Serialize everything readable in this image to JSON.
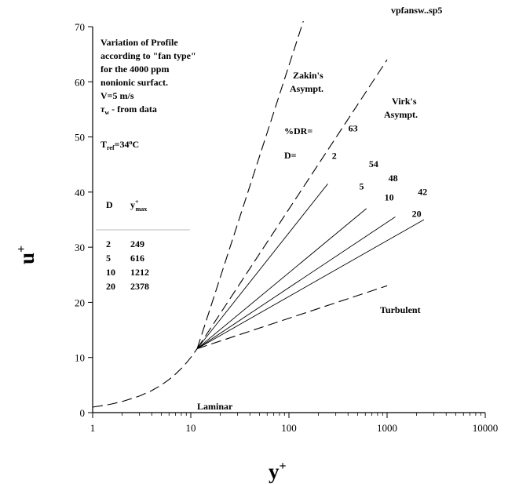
{
  "chart_data": {
    "type": "line",
    "title": "vpfansw..sp5",
    "xlabel": "y",
    "xlabel_sup": "+",
    "ylabel": "u",
    "ylabel_sup": "+",
    "x_scale": "log",
    "xlim": [
      1,
      10000
    ],
    "ylim": [
      0,
      70
    ],
    "x_ticks": [
      1,
      10,
      100,
      1000,
      10000
    ],
    "x_tick_labels": [
      "1",
      "10",
      "100",
      "1000",
      "10000"
    ],
    "y_ticks": [
      0,
      10,
      20,
      30,
      40,
      50,
      60,
      70
    ],
    "y_tick_labels": [
      "0",
      "10",
      "20",
      "30",
      "40",
      "50",
      "60",
      "70"
    ],
    "grid": false,
    "description_lines": [
      "Variation of Profile",
      "according to \"fan type\"",
      "for the 4000 ppm",
      "nonionic surfact.",
      "V=5 m/s"
    ],
    "tau_label": {
      "symbol": "τ",
      "sub": "w",
      "rest": " - from data"
    },
    "tref_label": {
      "main": "T",
      "sub": "ref",
      "value": "=34",
      "sup": "o",
      "unit": "C"
    },
    "table": {
      "headers": {
        "d": "D",
        "y_main": "y",
        "y_sup": "+",
        "y_sub": "max"
      },
      "rows": [
        {
          "d": "2",
          "ymax": "249"
        },
        {
          "d": "5",
          "ymax": "616"
        },
        {
          "d": "10",
          "ymax": "1212"
        },
        {
          "d": "20",
          "ymax": "2378"
        }
      ]
    },
    "series": [
      {
        "name": "Zakin's Asympt.",
        "label_lines": [
          "Zakin's",
          "Asympt."
        ],
        "style": "dashed",
        "points": [
          [
            11.6,
            11.6
          ],
          [
            140,
            71
          ]
        ]
      },
      {
        "name": "Virk's Asympt.",
        "label_lines": [
          "Virk's",
          "Asympt."
        ],
        "style": "dashed",
        "points": [
          [
            11.6,
            11.6
          ],
          [
            1000,
            64
          ]
        ]
      },
      {
        "name": "Turbulent",
        "label_lines": [
          "Turbulent"
        ],
        "style": "dashed",
        "points": [
          [
            11.6,
            11.6
          ],
          [
            1000,
            23
          ]
        ]
      },
      {
        "name": "Laminar",
        "label_lines": [
          "Laminar"
        ],
        "style": "dashed",
        "points": [
          [
            1,
            1
          ],
          [
            1.5,
            1.5
          ],
          [
            2,
            2
          ],
          [
            3,
            3
          ],
          [
            4,
            4
          ],
          [
            5,
            5
          ],
          [
            6,
            6
          ],
          [
            7,
            7
          ],
          [
            8,
            8
          ],
          [
            9,
            9
          ],
          [
            10,
            10
          ],
          [
            11.6,
            11.6
          ]
        ]
      },
      {
        "name": "D=2",
        "style": "solid",
        "points": [
          [
            11.6,
            11.6
          ],
          [
            249,
            41.5
          ]
        ]
      },
      {
        "name": "D=5",
        "style": "solid",
        "points": [
          [
            11.6,
            11.6
          ],
          [
            616,
            37
          ]
        ]
      },
      {
        "name": "D=10",
        "style": "solid",
        "points": [
          [
            11.6,
            11.6
          ],
          [
            1212,
            35.5
          ]
        ]
      },
      {
        "name": "D=20",
        "style": "solid",
        "points": [
          [
            11.6,
            11.6
          ],
          [
            2378,
            35
          ]
        ]
      }
    ],
    "annotations": {
      "drlabel": "%DR=",
      "dlabel": "D=",
      "dr_values": [
        {
          "text": "63",
          "x": 450,
          "y": 51
        },
        {
          "text": "54",
          "x": 730,
          "y": 44.5
        },
        {
          "text": "48",
          "x": 1150,
          "y": 42
        },
        {
          "text": "42",
          "x": 2300,
          "y": 39.5
        }
      ],
      "d_values": [
        {
          "text": "2",
          "x": 290,
          "y": 46
        },
        {
          "text": "5",
          "x": 550,
          "y": 40.5
        },
        {
          "text": "10",
          "x": 1050,
          "y": 38.5
        },
        {
          "text": "20",
          "x": 2000,
          "y": 35.5
        }
      ]
    }
  }
}
